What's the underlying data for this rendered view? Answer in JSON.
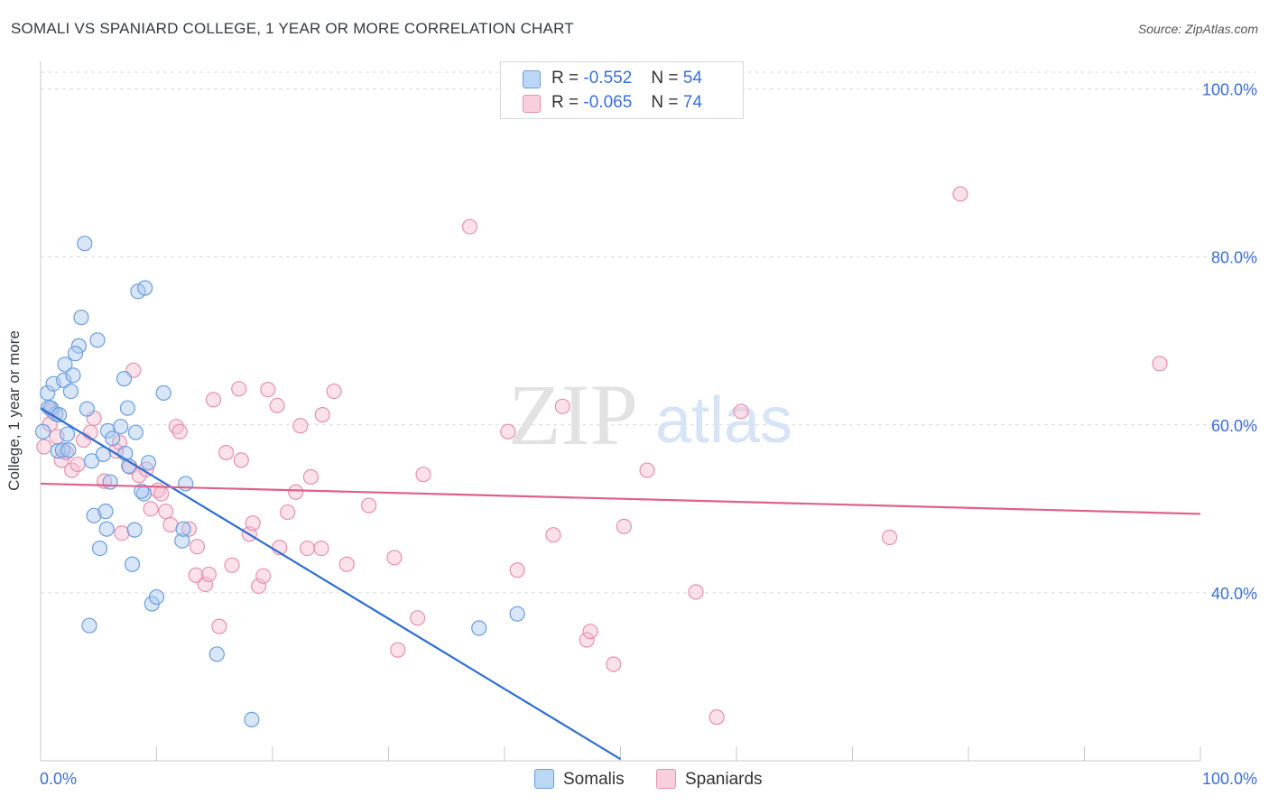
{
  "header": {
    "title": "SOMALI VS SPANIARD COLLEGE, 1 YEAR OR MORE CORRELATION CHART",
    "source": "Source: ZipAtlas.com"
  },
  "watermark": {
    "zip": "ZIP",
    "atlas": "atlas"
  },
  "legend": {
    "somali": {
      "r_label": "R =",
      "r_value": "-0.552",
      "n_label": "N =",
      "n_value": "54"
    },
    "spaniard": {
      "r_label": "R =",
      "r_value": "-0.065",
      "n_label": "N =",
      "n_value": "74"
    }
  },
  "bottom_legend": {
    "somali": "Somalis",
    "spaniard": "Spaniards"
  },
  "colors": {
    "somali_fill": "#a8c8f0",
    "somali_stroke": "#6a9ee0",
    "somali_line": "#2f6fd0",
    "spaniard_fill": "#f6bcd0",
    "spaniard_stroke": "#e890b0",
    "spaniard_line": "#e0608c",
    "tick_label": "#3a6fd8",
    "grid": "#dcdcdc"
  },
  "chart_data": {
    "type": "scatter",
    "title": "SOMALI VS SPANIARD COLLEGE, 1 YEAR OR MORE CORRELATION CHART",
    "xlabel": "",
    "ylabel": "College, 1 year or more",
    "xlim": [
      0,
      100
    ],
    "ylim": [
      20,
      102
    ],
    "x_tick_labels": [
      "0.0%",
      "100.0%"
    ],
    "y_ticks": [
      40,
      60,
      80,
      100
    ],
    "y_tick_labels": [
      "40.0%",
      "60.0%",
      "80.0%",
      "100.0%"
    ],
    "grid": "horizontal dashed",
    "legend_position": "top-center",
    "series": [
      {
        "name": "Somalis",
        "points": [
          [
            0.2,
            59.2
          ],
          [
            0.6,
            63.8
          ],
          [
            0.7,
            62.1
          ],
          [
            1.1,
            64.9
          ],
          [
            1.3,
            61.3
          ],
          [
            1.5,
            56.9
          ],
          [
            2.1,
            67.2
          ],
          [
            2.0,
            65.3
          ],
          [
            1.9,
            57.0
          ],
          [
            2.3,
            58.9
          ],
          [
            2.4,
            57.0
          ],
          [
            2.8,
            65.9
          ],
          [
            3.3,
            69.4
          ],
          [
            3.5,
            72.8
          ],
          [
            3.8,
            81.6
          ],
          [
            4.0,
            61.9
          ],
          [
            4.2,
            36.1
          ],
          [
            4.4,
            55.7
          ],
          [
            4.6,
            49.2
          ],
          [
            4.9,
            70.1
          ],
          [
            5.1,
            45.3
          ],
          [
            5.4,
            56.5
          ],
          [
            5.6,
            49.7
          ],
          [
            5.7,
            47.6
          ],
          [
            5.8,
            59.3
          ],
          [
            6.0,
            53.2
          ],
          [
            6.2,
            58.4
          ],
          [
            7.2,
            65.5
          ],
          [
            7.3,
            56.6
          ],
          [
            7.5,
            62.0
          ],
          [
            7.6,
            55.1
          ],
          [
            7.9,
            43.4
          ],
          [
            8.1,
            47.5
          ],
          [
            8.2,
            59.1
          ],
          [
            8.4,
            75.9
          ],
          [
            8.9,
            51.8
          ],
          [
            9.0,
            76.3
          ],
          [
            9.3,
            55.5
          ],
          [
            9.6,
            38.7
          ],
          [
            10.0,
            39.5
          ],
          [
            10.6,
            63.8
          ],
          [
            12.2,
            46.2
          ],
          [
            12.3,
            47.6
          ],
          [
            12.5,
            53.0
          ],
          [
            15.2,
            32.7
          ],
          [
            18.2,
            24.9
          ],
          [
            37.8,
            35.8
          ],
          [
            41.1,
            37.5
          ],
          [
            0.9,
            62.0
          ],
          [
            1.6,
            61.2
          ],
          [
            3.0,
            68.5
          ],
          [
            6.9,
            59.8
          ],
          [
            8.7,
            52.1
          ],
          [
            2.6,
            64.0
          ]
        ]
      },
      {
        "name": "Spaniards",
        "points": [
          [
            0.3,
            57.4
          ],
          [
            0.8,
            60.1
          ],
          [
            1.0,
            61.7
          ],
          [
            1.4,
            58.6
          ],
          [
            1.8,
            55.8
          ],
          [
            2.2,
            56.7
          ],
          [
            2.7,
            54.6
          ],
          [
            3.2,
            55.3
          ],
          [
            3.7,
            58.2
          ],
          [
            4.3,
            59.1
          ],
          [
            4.6,
            60.8
          ],
          [
            5.5,
            53.3
          ],
          [
            6.5,
            56.9
          ],
          [
            6.8,
            57.9
          ],
          [
            7.0,
            47.1
          ],
          [
            7.7,
            55.0
          ],
          [
            8.0,
            66.5
          ],
          [
            8.5,
            54.0
          ],
          [
            9.1,
            54.7
          ],
          [
            9.5,
            50.0
          ],
          [
            10.1,
            52.2
          ],
          [
            10.4,
            51.8
          ],
          [
            10.8,
            49.7
          ],
          [
            11.2,
            48.1
          ],
          [
            11.7,
            59.8
          ],
          [
            12.0,
            59.2
          ],
          [
            12.8,
            47.6
          ],
          [
            13.5,
            45.5
          ],
          [
            13.4,
            42.1
          ],
          [
            14.2,
            41.0
          ],
          [
            14.5,
            42.2
          ],
          [
            14.9,
            63.0
          ],
          [
            15.4,
            36.0
          ],
          [
            16.0,
            56.7
          ],
          [
            16.5,
            43.3
          ],
          [
            17.1,
            64.3
          ],
          [
            17.3,
            55.8
          ],
          [
            18.0,
            47.0
          ],
          [
            18.3,
            48.3
          ],
          [
            18.8,
            40.8
          ],
          [
            19.2,
            42.0
          ],
          [
            19.6,
            64.2
          ],
          [
            20.4,
            62.3
          ],
          [
            20.6,
            45.4
          ],
          [
            21.3,
            49.6
          ],
          [
            22.0,
            52.0
          ],
          [
            22.4,
            59.9
          ],
          [
            23.0,
            45.3
          ],
          [
            23.3,
            53.8
          ],
          [
            24.3,
            61.2
          ],
          [
            24.2,
            45.3
          ],
          [
            25.3,
            64.0
          ],
          [
            26.4,
            43.4
          ],
          [
            28.3,
            50.4
          ],
          [
            30.5,
            44.2
          ],
          [
            30.8,
            33.2
          ],
          [
            32.5,
            37.0
          ],
          [
            33.0,
            54.1
          ],
          [
            37.0,
            83.6
          ],
          [
            40.3,
            59.2
          ],
          [
            41.1,
            42.7
          ],
          [
            44.2,
            46.9
          ],
          [
            45.0,
            62.2
          ],
          [
            47.1,
            34.4
          ],
          [
            47.4,
            35.4
          ],
          [
            49.4,
            31.5
          ],
          [
            50.3,
            47.9
          ],
          [
            52.3,
            54.6
          ],
          [
            56.5,
            40.1
          ],
          [
            58.3,
            25.2
          ],
          [
            60.4,
            61.6
          ],
          [
            73.2,
            46.6
          ],
          [
            79.3,
            87.5
          ],
          [
            96.5,
            67.3
          ]
        ]
      }
    ],
    "trend_lines": [
      {
        "series": "Somalis",
        "x": [
          0,
          50
        ],
        "y": [
          62.0,
          20.2
        ]
      },
      {
        "series": "Spaniards",
        "x": [
          0,
          100
        ],
        "y": [
          53.0,
          49.4
        ]
      }
    ]
  }
}
